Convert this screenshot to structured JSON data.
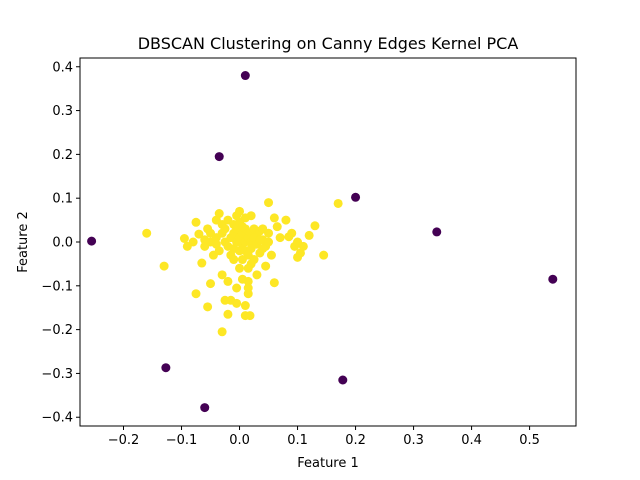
{
  "chart_data": {
    "type": "scatter",
    "title": "DBSCAN Clustering on Canny Edges Kernel PCA",
    "xlabel": "Feature 1",
    "ylabel": "Feature 2",
    "xlim": [
      -0.275,
      0.58
    ],
    "ylim": [
      -0.42,
      0.42
    ],
    "grid": false,
    "legend": "none",
    "x_ticks": [
      -0.2,
      -0.1,
      0.0,
      0.1,
      0.2,
      0.3,
      0.4,
      0.5
    ],
    "x_tick_labels": [
      "−0.2",
      "−0.1",
      "0.0",
      "0.1",
      "0.2",
      "0.3",
      "0.4",
      "0.5"
    ],
    "y_ticks": [
      -0.4,
      -0.3,
      -0.2,
      -0.1,
      0.0,
      0.1,
      0.2,
      0.3,
      0.4
    ],
    "y_tick_labels": [
      "−0.4",
      "−0.3",
      "−0.2",
      "−0.1",
      "0.0",
      "0.1",
      "0.2",
      "0.3",
      "0.4"
    ],
    "colors": {
      "cluster": "#fde725",
      "noise": "#440154"
    },
    "series": [
      {
        "color_key": "noise",
        "points": [
          [
            0.01,
            0.38
          ],
          [
            -0.035,
            0.195
          ],
          [
            0.2,
            0.102
          ],
          [
            -0.255,
            0.002
          ],
          [
            0.34,
            0.023
          ],
          [
            0.54,
            -0.085
          ],
          [
            -0.127,
            -0.287
          ],
          [
            0.178,
            -0.315
          ],
          [
            -0.06,
            -0.378
          ]
        ]
      },
      {
        "color_key": "cluster",
        "points": [
          [
            -0.16,
            0.02
          ],
          [
            -0.13,
            -0.055
          ],
          [
            -0.095,
            0.008
          ],
          [
            -0.09,
            -0.01
          ],
          [
            -0.08,
            0.0
          ],
          [
            -0.075,
            0.045
          ],
          [
            -0.07,
            0.018
          ],
          [
            -0.065,
            -0.048
          ],
          [
            -0.06,
            -0.01
          ],
          [
            -0.055,
            0.03
          ],
          [
            -0.05,
            0.02
          ],
          [
            -0.05,
            0.0
          ],
          [
            -0.045,
            -0.03
          ],
          [
            -0.04,
            0.05
          ],
          [
            -0.04,
            0.01
          ],
          [
            -0.035,
            0.065
          ],
          [
            -0.035,
            -0.02
          ],
          [
            -0.03,
            0.04
          ],
          [
            -0.03,
            0.02
          ],
          [
            -0.025,
            0.0
          ],
          [
            -0.025,
            0.03
          ],
          [
            -0.02,
            -0.01
          ],
          [
            -0.02,
            0.05
          ],
          [
            -0.015,
            0.01
          ],
          [
            -0.015,
            -0.03
          ],
          [
            -0.01,
            0.04
          ],
          [
            -0.01,
            0.02
          ],
          [
            -0.01,
            -0.015
          ],
          [
            -0.005,
            0.0
          ],
          [
            -0.005,
            0.03
          ],
          [
            -0.005,
            0.06
          ],
          [
            0.0,
            0.01
          ],
          [
            0.0,
            -0.02
          ],
          [
            0.0,
            0.045
          ],
          [
            0.0,
            0.07
          ],
          [
            0.005,
            0.02
          ],
          [
            0.005,
            -0.005
          ],
          [
            0.005,
            -0.04
          ],
          [
            0.01,
            0.03
          ],
          [
            0.01,
            0.0
          ],
          [
            0.01,
            -0.02
          ],
          [
            0.01,
            0.055
          ],
          [
            0.015,
            0.01
          ],
          [
            0.015,
            -0.03
          ],
          [
            0.015,
            -0.06
          ],
          [
            0.02,
            0.02
          ],
          [
            0.02,
            0.0
          ],
          [
            0.02,
            -0.015
          ],
          [
            0.025,
            0.03
          ],
          [
            0.025,
            -0.04
          ],
          [
            0.03,
            0.015
          ],
          [
            0.03,
            -0.005
          ],
          [
            0.035,
            0.025
          ],
          [
            0.035,
            -0.025
          ],
          [
            0.04,
            0.005
          ],
          [
            0.04,
            0.03
          ],
          [
            0.045,
            -0.01
          ],
          [
            0.05,
            0.02
          ],
          [
            0.05,
            0.0
          ],
          [
            0.055,
            -0.03
          ],
          [
            0.06,
            0.055
          ],
          [
            0.065,
            0.035
          ],
          [
            0.07,
            0.01
          ],
          [
            0.08,
            0.05
          ],
          [
            0.085,
            0.012
          ],
          [
            0.09,
            0.02
          ],
          [
            0.095,
            -0.01
          ],
          [
            0.1,
            0.0
          ],
          [
            0.1,
            -0.035
          ],
          [
            0.105,
            -0.025
          ],
          [
            0.11,
            -0.01
          ],
          [
            0.12,
            0.015
          ],
          [
            0.13,
            0.037
          ],
          [
            0.145,
            -0.03
          ],
          [
            0.17,
            0.088
          ],
          [
            0.05,
            0.09
          ],
          [
            0.02,
            0.06
          ],
          [
            0.045,
            -0.055
          ],
          [
            0.06,
            -0.093
          ],
          [
            0.03,
            -0.075
          ],
          [
            0.015,
            -0.09
          ],
          [
            0.015,
            -0.105
          ],
          [
            0.015,
            -0.118
          ],
          [
            0.005,
            -0.085
          ],
          [
            -0.02,
            -0.09
          ],
          [
            -0.005,
            -0.105
          ],
          [
            -0.05,
            -0.095
          ],
          [
            -0.075,
            -0.118
          ],
          [
            -0.03,
            -0.075
          ],
          [
            -0.025,
            -0.133
          ],
          [
            -0.015,
            -0.133
          ],
          [
            -0.005,
            -0.14
          ],
          [
            0.01,
            -0.145
          ],
          [
            -0.055,
            -0.148
          ],
          [
            -0.02,
            -0.165
          ],
          [
            0.01,
            -0.168
          ],
          [
            0.018,
            -0.168
          ],
          [
            -0.03,
            -0.205
          ],
          [
            -0.06,
            0.005
          ],
          [
            -0.04,
            -0.005
          ],
          [
            0.03,
            0.0
          ],
          [
            0.025,
            0.01
          ],
          [
            -0.01,
            -0.04
          ],
          [
            0.0,
            -0.06
          ],
          [
            0.02,
            -0.05
          ],
          [
            0.035,
            0.005
          ],
          [
            0.04,
            -0.015
          ],
          [
            0.005,
            0.035
          ]
        ]
      }
    ]
  }
}
